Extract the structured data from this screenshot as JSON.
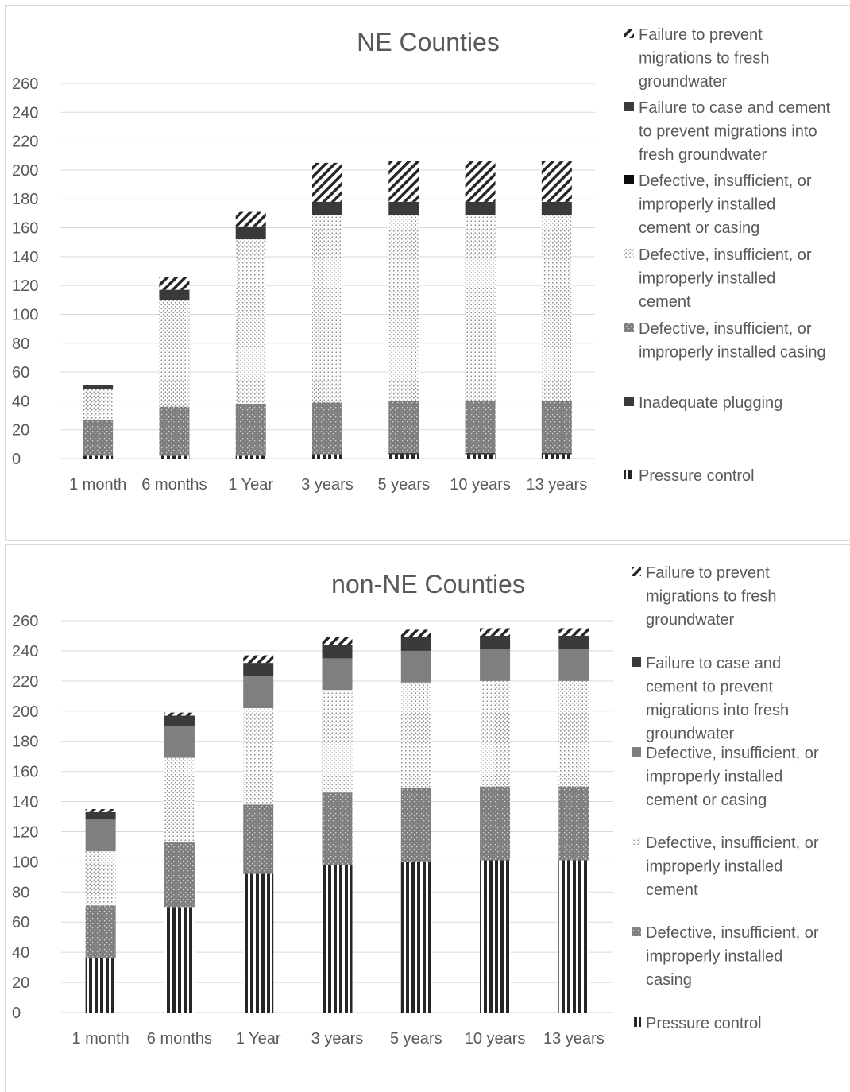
{
  "charts": [
    {
      "id": "ne",
      "chart_data": {
        "type": "bar",
        "stacked": true,
        "title": "NE Counties",
        "categories": [
          "1 month",
          "6 months",
          "1 Year",
          "3 years",
          "5 years",
          "10 years",
          "13 years"
        ],
        "yticks": [
          0,
          20,
          40,
          60,
          80,
          100,
          120,
          140,
          160,
          180,
          200,
          220,
          240,
          260
        ],
        "ylim": [
          0,
          260
        ],
        "grid": true,
        "legend_position": "right",
        "series": [
          {
            "name": "Pressure control",
            "pattern": "vstripe",
            "values": [
              2,
              2,
              2,
              3,
              3,
              3,
              3
            ]
          },
          {
            "name": "Inadequate plugging",
            "pattern": "solid-dark",
            "values": [
              0,
              0,
              0,
              0,
              1,
              1,
              1
            ]
          },
          {
            "name": "Defective, insufficient, or improperly installed casing",
            "pattern": "dots-dark",
            "values": [
              25,
              34,
              36,
              36,
              36,
              36,
              36
            ]
          },
          {
            "name": "Defective, insufficient, or improperly installed cement",
            "pattern": "dots-light",
            "values": [
              21,
              74,
              114,
              130,
              129,
              129,
              129
            ]
          },
          {
            "name": "Defective, insufficient, or improperly installed cement or casing",
            "pattern": "solid-black",
            "values": [
              0,
              0,
              0,
              0,
              0,
              0,
              0
            ]
          },
          {
            "name": "Failure to case and cement to prevent migrations into fresh groundwater",
            "pattern": "solid-dark",
            "values": [
              3,
              7,
              9,
              9,
              9,
              9,
              9
            ]
          },
          {
            "name": "Failure to prevent migrations to fresh groundwater",
            "pattern": "diag",
            "values": [
              0,
              9,
              10,
              27,
              28,
              28,
              28
            ]
          }
        ]
      }
    },
    {
      "id": "non-ne",
      "chart_data": {
        "type": "bar",
        "stacked": true,
        "title": "non-NE Counties",
        "categories": [
          "1 month",
          "6 months",
          "1 Year",
          "3 years",
          "5 years",
          "10 years",
          "13 years"
        ],
        "yticks": [
          0,
          20,
          40,
          60,
          80,
          100,
          120,
          140,
          160,
          180,
          200,
          220,
          240,
          260
        ],
        "ylim": [
          0,
          260
        ],
        "grid": true,
        "legend_position": "right",
        "series": [
          {
            "name": "Pressure control",
            "pattern": "vstripe",
            "values": [
              36,
              70,
              92,
              98,
              100,
              101,
              101
            ]
          },
          {
            "name": "Defective, insufficient, or improperly installed casing",
            "pattern": "dots-dark",
            "values": [
              35,
              43,
              46,
              48,
              49,
              49,
              49
            ]
          },
          {
            "name": "Defective, insufficient, or improperly installed cement",
            "pattern": "dots-light",
            "values": [
              36,
              56,
              64,
              68,
              70,
              70,
              70
            ]
          },
          {
            "name": "Defective, insufficient, or improperly installed cement or casing",
            "pattern": "solid-mid",
            "values": [
              21,
              21,
              21,
              21,
              21,
              21,
              21
            ]
          },
          {
            "name": "Failure to case and cement to prevent migrations into fresh groundwater",
            "pattern": "solid-dark",
            "values": [
              5,
              7,
              9,
              9,
              9,
              9,
              9
            ]
          },
          {
            "name": "Failure to prevent migrations to fresh groundwater",
            "pattern": "diag",
            "values": [
              2,
              2,
              5,
              5,
              5,
              5,
              5
            ]
          }
        ]
      }
    }
  ],
  "legends": {
    "ne": [
      {
        "lines": [
          "Failure to prevent",
          "migrations to fresh",
          "groundwater"
        ],
        "pattern": "diag"
      },
      {
        "lines": [
          "Failure to case and cement",
          "to prevent migrations into",
          "fresh groundwater"
        ],
        "pattern": "solid-dark"
      },
      {
        "lines": [
          "Defective, insufficient, or",
          "improperly installed",
          "cement or casing"
        ],
        "pattern": "solid-black"
      },
      {
        "lines": [
          "Defective, insufficient, or",
          "improperly installed",
          "cement"
        ],
        "pattern": "dots-light"
      },
      {
        "lines": [
          "Defective, insufficient, or",
          "improperly installed casing"
        ],
        "pattern": "dots-dark"
      },
      {
        "lines": [
          "Inadequate plugging"
        ],
        "pattern": "solid-dark"
      },
      {
        "lines": [
          "Pressure control"
        ],
        "pattern": "vstripe"
      }
    ],
    "non-ne": [
      {
        "lines": [
          "Failure to prevent",
          "migrations to fresh",
          "groundwater"
        ],
        "pattern": "diag"
      },
      {
        "lines": [
          "Failure to case and",
          "cement to prevent",
          "migrations into fresh",
          "groundwater"
        ],
        "pattern": "solid-dark"
      },
      {
        "lines": [
          "Defective, insufficient, or",
          "improperly installed",
          "cement or casing"
        ],
        "pattern": "solid-mid"
      },
      {
        "lines": [
          "Defective, insufficient, or",
          "improperly installed",
          "cement"
        ],
        "pattern": "dots-light"
      },
      {
        "lines": [
          "Defective, insufficient, or",
          "improperly installed",
          "casing"
        ],
        "pattern": "dots-dark"
      },
      {
        "lines": [
          "Pressure control"
        ],
        "pattern": "vstripe"
      }
    ]
  }
}
